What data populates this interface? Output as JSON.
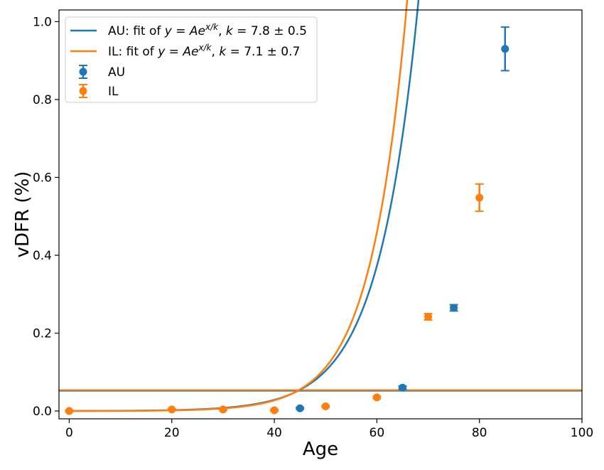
{
  "chart_data": {
    "type": "scatter",
    "xlabel": "Age",
    "ylabel": "vDFR (%)",
    "xlim": [
      -2,
      100
    ],
    "ylim": [
      -0.02,
      1.03
    ],
    "xticks": [
      0,
      20,
      40,
      60,
      80,
      100
    ],
    "yticks": [
      0.0,
      0.2,
      0.4,
      0.6,
      0.8,
      1.0
    ],
    "xtick_labels": [
      "0",
      "20",
      "40",
      "60",
      "80",
      "100"
    ],
    "ytick_labels": [
      "0.0",
      "0.2",
      "0.4",
      "0.6",
      "0.8",
      "1.0"
    ],
    "grid": false,
    "legend_position": "top-left",
    "series": [
      {
        "name": "AU",
        "color": "#1f77b4",
        "points": [
          {
            "x": 45,
            "y": 0.007,
            "err": 0.002
          },
          {
            "x": 65,
            "y": 0.06,
            "err": 0.004
          },
          {
            "x": 75,
            "y": 0.265,
            "err": 0.008
          },
          {
            "x": 85,
            "y": 0.93,
            "err": 0.056
          }
        ]
      },
      {
        "name": "IL",
        "color": "#ff7f0e",
        "points": [
          {
            "x": 0,
            "y": 0.0,
            "err": 0.002
          },
          {
            "x": 20,
            "y": 0.004,
            "err": 0.002
          },
          {
            "x": 30,
            "y": 0.004,
            "err": 0.002
          },
          {
            "x": 40,
            "y": 0.002,
            "err": 0.002
          },
          {
            "x": 50,
            "y": 0.012,
            "err": 0.002
          },
          {
            "x": 60,
            "y": 0.035,
            "err": 0.003
          },
          {
            "x": 70,
            "y": 0.242,
            "err": 0.008
          },
          {
            "x": 80,
            "y": 0.548,
            "err": 0.035
          }
        ]
      }
    ],
    "fits": [
      {
        "name": "AU: fit of y = Ae^{x/k}, k = 7.8 ± 0.5",
        "label_prefix": "AU: fit of ",
        "label_k": "k = 7.8 ± 0.5",
        "color": "#1f77b4",
        "A": 0.00017,
        "k": 7.8,
        "x_range": [
          0,
          85.5
        ]
      },
      {
        "name": "IL: fit of y = Ae^{x/k}, k = 7.1 ± 0.7",
        "label_prefix": "IL: fit of ",
        "label_k": "k = 7.1 ± 0.7",
        "color": "#ff7f0e",
        "A": 9.8e-05,
        "k": 7.1,
        "x_range": [
          0,
          80
        ]
      }
    ],
    "reference_lines": [
      {
        "y": 0.052,
        "color": "#1f77b4"
      },
      {
        "y": 0.054,
        "color": "#ff7f0e"
      }
    ],
    "legend": [
      {
        "label": "AU: fit of y = Ae^{x/k}, k = 7.8 ± 0.5",
        "kind": "line",
        "color": "#1f77b4"
      },
      {
        "label": "IL: fit of y = Ae^{x/k}, k = 7.1 ± 0.7",
        "kind": "line",
        "color": "#ff7f0e"
      },
      {
        "label": "AU",
        "kind": "marker",
        "color": "#1f77b4"
      },
      {
        "label": "IL",
        "kind": "marker",
        "color": "#ff7f0e"
      }
    ]
  }
}
